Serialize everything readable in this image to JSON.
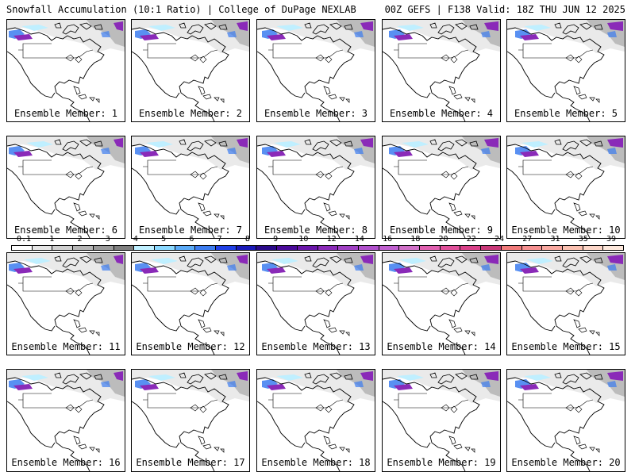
{
  "header": {
    "title_left": "Snowfall Accumulation (10:1 Ratio) | College of DuPage NEXLAB",
    "title_right": "00Z GEFS | F138 Valid: 18Z THU JUN 12 2025"
  },
  "panels": [
    {
      "label": "Ensemble Member: 1"
    },
    {
      "label": "Ensemble Member: 2"
    },
    {
      "label": "Ensemble Member: 3"
    },
    {
      "label": "Ensemble Member: 4"
    },
    {
      "label": "Ensemble Member: 5"
    },
    {
      "label": "Ensemble Member: 6"
    },
    {
      "label": "Ensemble Member: 7"
    },
    {
      "label": "Ensemble Member: 8"
    },
    {
      "label": "Ensemble Member: 9"
    },
    {
      "label": "Ensemble Member: 10"
    },
    {
      "label": "Ensemble Member: 11"
    },
    {
      "label": "Ensemble Member: 12"
    },
    {
      "label": "Ensemble Member: 13"
    },
    {
      "label": "Ensemble Member: 14"
    },
    {
      "label": "Ensemble Member: 15"
    },
    {
      "label": "Ensemble Member: 16"
    },
    {
      "label": "Ensemble Member: 17"
    },
    {
      "label": "Ensemble Member: 18"
    },
    {
      "label": "Ensemble Member: 19"
    },
    {
      "label": "Ensemble Member: 20"
    }
  ],
  "colorbar": {
    "labels": [
      "0.1",
      "1",
      "2",
      "3",
      "4",
      "5",
      "6",
      "7",
      "8",
      "9",
      "10",
      "12",
      "14",
      "16",
      "18",
      "20",
      "22",
      "24",
      "27",
      "31",
      "35",
      "39"
    ],
    "colors": [
      "#ffffff",
      "#e6e6e6",
      "#cfcfcf",
      "#b5b5b5",
      "#9a9a9a",
      "#7f7f7f",
      "#bfefff",
      "#8ad8ff",
      "#5aaaf7",
      "#3c7cf0",
      "#2040e6",
      "#1a1ab8",
      "#2a0a8a",
      "#4a0a9a",
      "#6a16aa",
      "#8a2ab8",
      "#a040c4",
      "#b050cc",
      "#c060d0",
      "#d070c8",
      "#e060b0",
      "#e0509a",
      "#d84088",
      "#c83878",
      "#f07a7a",
      "#f59090",
      "#f8a8a0",
      "#fac0b0",
      "#fcd6c8",
      "#fde8dc"
    ]
  },
  "map_colors": {
    "light": "#d8d8d8",
    "mid": "#a8a8a8",
    "cyan": "#bfefff",
    "blue": "#3c7cf0",
    "purple": "#8a2ab8"
  }
}
